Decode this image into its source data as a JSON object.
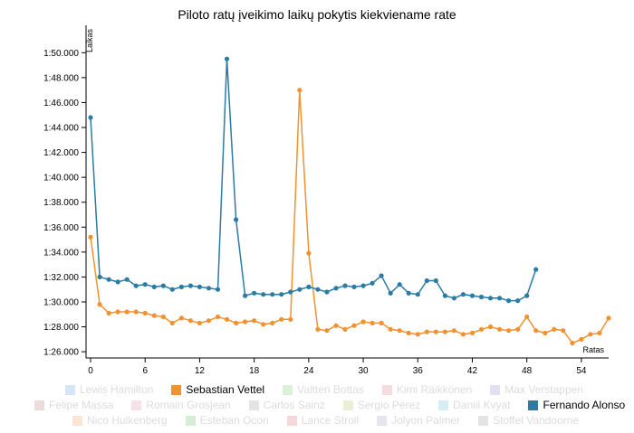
{
  "chart_data": {
    "type": "line",
    "title": "Piloto ratų įveikimo laikų pokytis kiekviename rate",
    "xlabel": "Ratas",
    "ylabel": "Laikas",
    "xlim": [
      -0.5,
      57
    ],
    "ylim": [
      85.5,
      112.2
    ],
    "x_ticks": [
      0,
      6,
      12,
      18,
      24,
      30,
      36,
      42,
      48,
      54
    ],
    "y_ticks": [
      {
        "value": 86,
        "label": "1:26.000"
      },
      {
        "value": 88,
        "label": "1:28.000"
      },
      {
        "value": 90,
        "label": "1:30.000"
      },
      {
        "value": 92,
        "label": "1:32.000"
      },
      {
        "value": 94,
        "label": "1:34.000"
      },
      {
        "value": 96,
        "label": "1:36.000"
      },
      {
        "value": 98,
        "label": "1:38.000"
      },
      {
        "value": 100,
        "label": "1:40.000"
      },
      {
        "value": 102,
        "label": "1:42.000"
      },
      {
        "value": 104,
        "label": "1:44.000"
      },
      {
        "value": 106,
        "label": "1:46.000"
      },
      {
        "value": 108,
        "label": "1:48.000"
      },
      {
        "value": 110,
        "label": "1:50.000"
      }
    ],
    "grid": false,
    "legend_position": "bottom",
    "series": [
      {
        "name": "Sebastian Vettel",
        "color": "#f0922f",
        "start_lap": 0,
        "values": [
          95.2,
          89.8,
          89.1,
          89.2,
          89.2,
          89.2,
          89.1,
          88.9,
          88.8,
          88.3,
          88.7,
          88.5,
          88.3,
          88.5,
          88.8,
          88.6,
          88.3,
          88.4,
          88.5,
          88.2,
          88.3,
          88.6,
          88.6,
          107.0,
          93.9,
          87.8,
          87.7,
          88.1,
          87.8,
          88.1,
          88.4,
          88.3,
          88.3,
          87.8,
          87.7,
          87.5,
          87.4,
          87.6,
          87.6,
          87.6,
          87.7,
          87.4,
          87.5,
          87.8,
          88.0,
          87.8,
          87.7,
          87.8,
          88.8,
          87.7,
          87.5,
          87.8,
          87.7,
          86.7,
          87.0,
          87.4,
          87.5,
          88.7
        ]
      },
      {
        "name": "Fernando Alonso",
        "color": "#2b7ba4",
        "start_lap": 0,
        "values": [
          104.8,
          92.0,
          91.8,
          91.6,
          91.8,
          91.3,
          91.4,
          91.2,
          91.3,
          91.0,
          91.2,
          91.3,
          91.2,
          91.1,
          91.0,
          109.5,
          96.6,
          90.5,
          90.7,
          90.6,
          90.6,
          90.6,
          90.8,
          91.0,
          91.2,
          91.0,
          90.8,
          91.1,
          91.3,
          91.2,
          91.3,
          91.5,
          92.1,
          90.7,
          91.4,
          90.7,
          90.6,
          91.7,
          91.7,
          90.5,
          90.3,
          90.6,
          90.5,
          90.4,
          90.3,
          90.3,
          90.1,
          90.1,
          90.5,
          92.6
        ]
      }
    ]
  },
  "legend": {
    "items": [
      {
        "label": "Lewis Hamilton",
        "color": "#d6e6f4",
        "active": false
      },
      {
        "label": "Sebastian Vettel",
        "color": "#f0922f",
        "active": true
      },
      {
        "label": "Valtteri Bottas",
        "color": "#dcefd8",
        "active": false
      },
      {
        "label": "Kimi Räikkönen",
        "color": "#f6dcdc",
        "active": false
      },
      {
        "label": "Max Verstappen",
        "color": "#e4e0f1",
        "active": false
      },
      {
        "label": "Felipe Massa",
        "color": "#ecdcdc",
        "active": false
      },
      {
        "label": "Romain Grosjean",
        "color": "#f6e0ea",
        "active": false
      },
      {
        "label": "Carlos Sainz",
        "color": "#e4e4e4",
        "active": false
      },
      {
        "label": "Sergio Pérez",
        "color": "#eeeed8",
        "active": false
      },
      {
        "label": "Daniil Kvyat",
        "color": "#d6eef2",
        "active": false
      },
      {
        "label": "Fernando Alonso",
        "color": "#2b7ba4",
        "active": true
      },
      {
        "label": "Nico Hulkenberg",
        "color": "#fae6d6",
        "active": false
      },
      {
        "label": "Esteban Ocon",
        "color": "#d6eed6",
        "active": false
      },
      {
        "label": "Lance Stroll",
        "color": "#f6d8d8",
        "active": false
      },
      {
        "label": "Jolyon Palmer",
        "color": "#e8e4ee",
        "active": false
      },
      {
        "label": "Stoffel Vandoorne",
        "color": "#e4e4e4",
        "active": false
      }
    ]
  }
}
